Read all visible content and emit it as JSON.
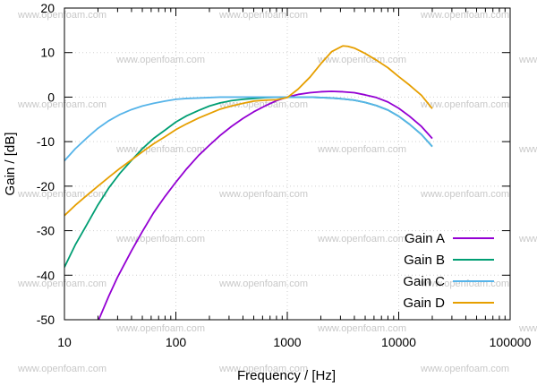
{
  "chart_data": {
    "type": "line",
    "xlabel": "Frequency / [Hz]",
    "ylabel": "Gain / [dB]",
    "xscale": "log",
    "xlim": [
      10,
      100000
    ],
    "ylim": [
      -50,
      20
    ],
    "grid": true,
    "legend_position": "bottom-right",
    "x_ticks": [
      10,
      100,
      1000,
      10000,
      100000
    ],
    "x_tick_labels": [
      "10",
      "100",
      "1000",
      "10000",
      "100000"
    ],
    "y_ticks": [
      -50,
      -40,
      -30,
      -20,
      -10,
      0,
      10,
      20
    ],
    "y_tick_labels": [
      "-50",
      "-40",
      "-30",
      "-20",
      "-10",
      "0",
      "10",
      "20"
    ],
    "watermark_text": "www.openfoam.com",
    "series": [
      {
        "name": "Gain A",
        "color": "#9400d3",
        "x": [
          20,
          25,
          30,
          40,
          50,
          63,
          80,
          100,
          125,
          160,
          200,
          250,
          315,
          400,
          500,
          630,
          800,
          1000,
          1250,
          1600,
          2000,
          2500,
          3150,
          4000,
          5000,
          6300,
          8000,
          10000,
          12500,
          16000,
          20000
        ],
        "y": [
          -50.4,
          -44.7,
          -40.4,
          -34.5,
          -30.2,
          -26.0,
          -22.3,
          -19.1,
          -16.1,
          -13.1,
          -10.8,
          -8.6,
          -6.6,
          -4.8,
          -3.3,
          -2.0,
          -0.8,
          0.0,
          0.6,
          1.0,
          1.2,
          1.3,
          1.2,
          1.0,
          0.5,
          -0.1,
          -1.1,
          -2.5,
          -4.3,
          -6.6,
          -9.3
        ]
      },
      {
        "name": "Gain B",
        "color": "#009e73",
        "x": [
          10,
          12.5,
          16,
          20,
          25,
          31.5,
          40,
          50,
          63,
          80,
          100,
          125,
          160,
          200,
          250,
          315,
          400,
          500,
          630,
          800,
          1000,
          1250,
          1600,
          2000,
          2500,
          3150,
          4000,
          5000,
          6300,
          8000,
          10000,
          12500,
          16000,
          20000
        ],
        "y": [
          -38.2,
          -33.2,
          -28.5,
          -24.2,
          -20.4,
          -17.1,
          -14.2,
          -11.6,
          -9.3,
          -7.4,
          -5.6,
          -4.2,
          -3.0,
          -2.0,
          -1.3,
          -0.8,
          -0.5,
          -0.3,
          -0.1,
          0.0,
          0.0,
          0.0,
          0.0,
          -0.1,
          -0.2,
          -0.4,
          -0.7,
          -1.2,
          -1.9,
          -2.9,
          -4.3,
          -6.1,
          -8.4,
          -11.1
        ]
      },
      {
        "name": "Gain C",
        "color": "#56b4e9",
        "x": [
          10,
          12.5,
          16,
          20,
          25,
          31.5,
          40,
          50,
          63,
          80,
          100,
          125,
          160,
          200,
          250,
          315,
          400,
          500,
          630,
          800,
          1000,
          1250,
          1600,
          2000,
          2500,
          3150,
          4000,
          5000,
          6300,
          8000,
          10000,
          12500,
          16000,
          20000
        ],
        "y": [
          -14.3,
          -11.6,
          -9.1,
          -7.0,
          -5.3,
          -3.9,
          -2.8,
          -2.0,
          -1.4,
          -0.9,
          -0.5,
          -0.3,
          -0.2,
          -0.1,
          0.0,
          0.0,
          0.0,
          0.0,
          0.0,
          0.0,
          0.0,
          0.0,
          0.0,
          -0.1,
          -0.2,
          -0.4,
          -0.7,
          -1.2,
          -1.9,
          -2.9,
          -4.3,
          -6.1,
          -8.4,
          -11.1
        ]
      },
      {
        "name": "Gain D",
        "color": "#e69f00",
        "x": [
          10,
          12.5,
          16,
          20,
          25,
          31.5,
          40,
          50,
          63,
          80,
          100,
          125,
          160,
          200,
          250,
          315,
          400,
          500,
          630,
          800,
          1000,
          1250,
          1600,
          2000,
          2500,
          3150,
          3500,
          4000,
          5000,
          6300,
          8000,
          10000,
          12500,
          16000,
          20000
        ],
        "y": [
          -26.6,
          -24.3,
          -22.0,
          -20.0,
          -18.0,
          -16.0,
          -14.1,
          -12.3,
          -10.5,
          -8.9,
          -7.3,
          -6.0,
          -4.7,
          -3.7,
          -2.7,
          -2.0,
          -1.4,
          -0.9,
          -0.7,
          -0.6,
          -0.1,
          1.8,
          4.5,
          7.5,
          10.2,
          11.5,
          11.4,
          11.0,
          9.8,
          8.3,
          6.6,
          4.6,
          2.7,
          0.4,
          -2.6
        ]
      }
    ]
  }
}
